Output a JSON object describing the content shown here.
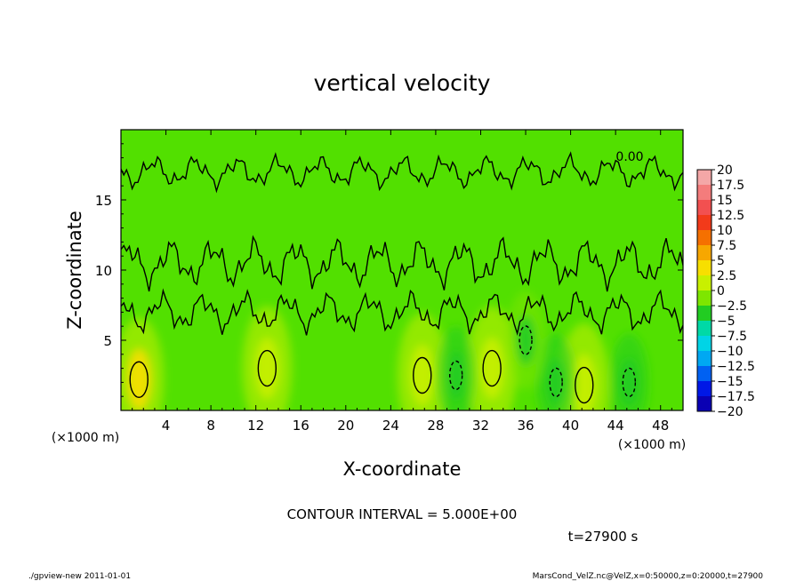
{
  "chart_data": {
    "type": "heatmap",
    "title": "vertical velocity",
    "xlabel": "X-coordinate",
    "ylabel": "Z-coordinate",
    "x_unit": "(×1000 m)",
    "y_unit": "(×1000 m)",
    "xlim": [
      0,
      50
    ],
    "ylim": [
      0,
      20
    ],
    "x_ticks": [
      4,
      8,
      12,
      16,
      20,
      24,
      28,
      32,
      36,
      40,
      44,
      48
    ],
    "y_ticks": [
      5,
      10,
      15
    ],
    "contour_interval_text": "CONTOUR INTERVAL = 5.000E+00",
    "contour_label": "0.00",
    "time_text": "t=27900 s",
    "colorbar": {
      "labels": [
        "20",
        "17.5",
        "15",
        "12.5",
        "10",
        "7.5",
        "5",
        "2.5",
        "0",
        "−2.5",
        "−5",
        "−7.5",
        "−10",
        "−12.5",
        "−15",
        "−17.5",
        "−20"
      ],
      "colors": [
        "#f4a7a7",
        "#f47c7c",
        "#f25050",
        "#f23a1a",
        "#f57000",
        "#f7a700",
        "#f7df00",
        "#c8f000",
        "#7ee600",
        "#22cc22",
        "#00d9a6",
        "#00d4e6",
        "#00a8f2",
        "#0061f2",
        "#0018e6",
        "#0a00b3",
        "#5e00b3"
      ]
    },
    "peaks": [
      {
        "x": 1.6,
        "z": 2.2,
        "w": 4,
        "type": "updraft"
      },
      {
        "x": 13.0,
        "z": 3.0,
        "w": 3,
        "type": "updraft"
      },
      {
        "x": 26.8,
        "z": 2.5,
        "w": 2.5,
        "type": "updraft"
      },
      {
        "x": 33.0,
        "z": 3.0,
        "w": 3,
        "type": "updraft"
      },
      {
        "x": 41.2,
        "z": 1.8,
        "w": 2.5,
        "type": "updraft"
      },
      {
        "x": 29.8,
        "z": 2.5,
        "w": -2.5,
        "type": "downdraft"
      },
      {
        "x": 38.7,
        "z": 2.0,
        "w": -3,
        "type": "downdraft"
      },
      {
        "x": 45.2,
        "z": 2.0,
        "w": -2.5,
        "type": "downdraft"
      },
      {
        "x": 36.0,
        "z": 5.0,
        "w": -2,
        "type": "downdraft"
      }
    ]
  },
  "footer": {
    "left": "./gpview-new 2011-01-01",
    "right": "MarsCond_VelZ.nc@VelZ,x=0:50000,z=0:20000,t=27900"
  }
}
